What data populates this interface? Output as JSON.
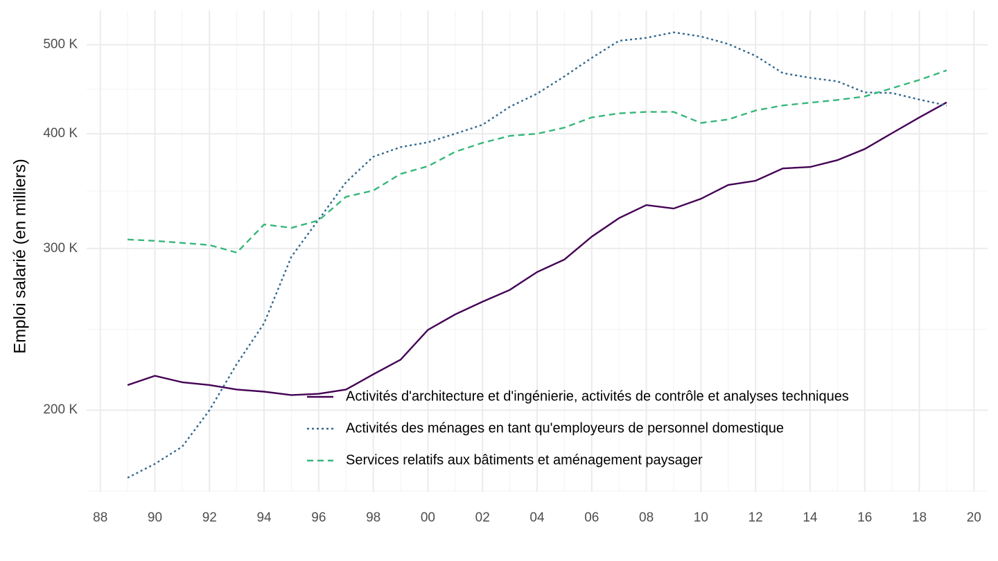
{
  "chart_data": {
    "type": "line",
    "y_label": "Emploi salarié (en milliers)",
    "log_y": true,
    "grid": true,
    "legend_position": "inside-bottom-center",
    "x": [
      1989,
      1990,
      1991,
      1992,
      1993,
      1994,
      1995,
      1996,
      1997,
      1998,
      1999,
      2000,
      2001,
      2002,
      2003,
      2004,
      2005,
      2006,
      2007,
      2008,
      2009,
      2010,
      2011,
      2012,
      2013,
      2014,
      2015,
      2016,
      2017,
      2018,
      2019
    ],
    "series": [
      {
        "name": "Activités d'architecture et d'ingénierie, activités de contrôle et analyses techniques",
        "color": "#440154",
        "dash": "solid",
        "values": [
          213,
          218,
          214.5,
          213,
          210.6,
          209.5,
          207.7,
          208.4,
          210.6,
          218.8,
          227,
          244.6,
          254.3,
          262.5,
          270.4,
          282.8,
          291.8,
          309,
          323.7,
          334.5,
          331.6,
          339.8,
          351.8,
          355.5,
          366.7,
          368,
          374.4,
          385,
          400.6,
          416.7,
          432.7
        ]
      },
      {
        "name": "Activités des ménages en tant qu'employeurs de personnel domestique",
        "color": "#31688e",
        "dash": "dotted",
        "values": [
          168.8,
          174.8,
          182.5,
          200,
          224.6,
          248.7,
          293.9,
          322.6,
          354.2,
          377.6,
          386.8,
          391.5,
          400,
          409.1,
          428,
          442.3,
          461.9,
          483.8,
          505,
          508.7,
          515.8,
          510.5,
          501,
          486.3,
          465.7,
          460.2,
          456.2,
          443.7,
          443,
          435.8,
          429.4
        ]
      },
      {
        "name": "Services relatifs aux bâtiments et aménagement paysager",
        "color": "#35b779",
        "dash": "dashed",
        "values": [
          306.8,
          305.8,
          304.2,
          302.6,
          296.9,
          318.6,
          315.9,
          321.9,
          341.5,
          346.9,
          361.7,
          368.7,
          382.3,
          391,
          397.9,
          400,
          406.2,
          416.7,
          421,
          422.5,
          422.5,
          411,
          414.6,
          424,
          429.4,
          432.4,
          435.4,
          439.2,
          448.4,
          457.8,
          468.9
        ]
      }
    ],
    "xlim": [
      1987.5,
      2020.5
    ],
    "xticks": [
      {
        "value": 1988,
        "label": "88"
      },
      {
        "value": 1990,
        "label": "90"
      },
      {
        "value": 1992,
        "label": "92"
      },
      {
        "value": 1994,
        "label": "94"
      },
      {
        "value": 1996,
        "label": "96"
      },
      {
        "value": 1998,
        "label": "98"
      },
      {
        "value": 2000,
        "label": "00"
      },
      {
        "value": 2002,
        "label": "02"
      },
      {
        "value": 2004,
        "label": "04"
      },
      {
        "value": 2006,
        "label": "06"
      },
      {
        "value": 2008,
        "label": "08"
      },
      {
        "value": 2010,
        "label": "10"
      },
      {
        "value": 2012,
        "label": "12"
      },
      {
        "value": 2014,
        "label": "14"
      },
      {
        "value": 2016,
        "label": "16"
      },
      {
        "value": 2018,
        "label": "18"
      },
      {
        "value": 2020,
        "label": "20"
      }
    ],
    "ylim": [
      163,
      545
    ],
    "yticks": [
      {
        "value": 200,
        "label": "200 K"
      },
      {
        "value": 300,
        "label": "300 K"
      },
      {
        "value": 400,
        "label": "400 K"
      },
      {
        "value": 500,
        "label": "500 K"
      }
    ]
  }
}
